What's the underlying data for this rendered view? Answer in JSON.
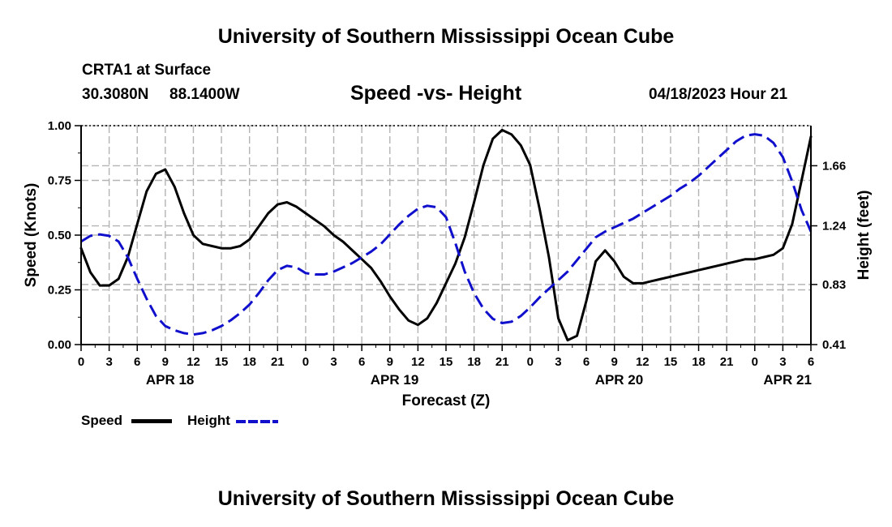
{
  "header": {
    "title_top": "University of Southern Mississippi Ocean Cube",
    "station": "CRTA1 at Surface",
    "lat": "30.3080N",
    "lon": "88.1400W",
    "chart_title": "Speed -vs- Height",
    "date": "04/18/2023 Hour 21"
  },
  "footer": {
    "title_bottom": "University of Southern Mississippi Ocean Cube"
  },
  "legend": {
    "speed_label": "Speed",
    "height_label": "Height"
  },
  "colors": {
    "speed": "#000000",
    "height": "#1010cc",
    "grid": "#b4b4b4"
  },
  "chart_data": {
    "type": "line",
    "title": "Speed -vs- Height",
    "xlabel": "Forecast (Z)",
    "ylabel": "Speed (Knots)",
    "y2label": "Height (feet)",
    "xlim": [
      0,
      78
    ],
    "ylim": [
      0,
      1.0
    ],
    "y2lim": [
      0.41,
      1.94
    ],
    "x_ticks": [
      0,
      3,
      6,
      9,
      12,
      15,
      18,
      21,
      24,
      27,
      30,
      33,
      36,
      39,
      42,
      45,
      48,
      51,
      54,
      57,
      60,
      63,
      66,
      69,
      72,
      75,
      78
    ],
    "x_tick_labels": [
      "0",
      "3",
      "6",
      "9",
      "12",
      "15",
      "18",
      "21",
      "0",
      "3",
      "6",
      "9",
      "12",
      "15",
      "18",
      "21",
      "0",
      "3",
      "6",
      "9",
      "12",
      "15",
      "18",
      "21",
      "0",
      "3",
      "6"
    ],
    "y_ticks": [
      0,
      0.25,
      0.5,
      0.75,
      1.0
    ],
    "y_tick_labels": [
      "0.00",
      "0.25",
      "0.50",
      "0.75",
      "1.00"
    ],
    "y2_ticks": [
      0.41,
      0.83,
      1.24,
      1.66
    ],
    "y2_tick_labels": [
      "0.41",
      "0.83",
      "1.24",
      "1.66"
    ],
    "date_labels": [
      {
        "x": 9.5,
        "label": "APR 18"
      },
      {
        "x": 33.5,
        "label": "APR 19"
      },
      {
        "x": 57.5,
        "label": "APR 20"
      },
      {
        "x": 75.5,
        "label": "APR 21"
      }
    ],
    "series": [
      {
        "name": "Speed",
        "axis": "left",
        "dash": "solid",
        "x": [
          0,
          1,
          2,
          3,
          4,
          5,
          6,
          7,
          8,
          9,
          10,
          11,
          12,
          13,
          14,
          15,
          16,
          17,
          18,
          19,
          20,
          21,
          22,
          23,
          24,
          25,
          26,
          27,
          28,
          29,
          30,
          31,
          32,
          33,
          34,
          35,
          36,
          37,
          38,
          39,
          40,
          41,
          42,
          43,
          44,
          45,
          46,
          47,
          48,
          49,
          50,
          51,
          52,
          53,
          54,
          55,
          56,
          57,
          58,
          59,
          60,
          61,
          62,
          63,
          64,
          65,
          66,
          67,
          68,
          69,
          70,
          71,
          72,
          73,
          74,
          75,
          76,
          77,
          78
        ],
        "values": [
          0.44,
          0.33,
          0.27,
          0.27,
          0.3,
          0.4,
          0.55,
          0.7,
          0.78,
          0.8,
          0.72,
          0.6,
          0.5,
          0.46,
          0.45,
          0.44,
          0.44,
          0.45,
          0.48,
          0.54,
          0.6,
          0.64,
          0.65,
          0.63,
          0.6,
          0.57,
          0.54,
          0.5,
          0.47,
          0.43,
          0.39,
          0.35,
          0.29,
          0.22,
          0.16,
          0.11,
          0.09,
          0.12,
          0.19,
          0.28,
          0.37,
          0.49,
          0.65,
          0.82,
          0.94,
          0.98,
          0.96,
          0.91,
          0.82,
          0.62,
          0.4,
          0.12,
          0.02,
          0.04,
          0.2,
          0.38,
          0.43,
          0.38,
          0.31,
          0.28,
          0.28,
          0.29,
          0.3,
          0.31,
          0.32,
          0.33,
          0.34,
          0.35,
          0.36,
          0.37,
          0.38,
          0.39,
          0.39,
          0.4,
          0.41,
          0.44,
          0.55,
          0.75,
          0.95
        ]
      },
      {
        "name": "Height",
        "axis": "right",
        "dash": "dashed",
        "x": [
          0,
          1,
          2,
          3,
          4,
          5,
          6,
          7,
          8,
          9,
          10,
          11,
          12,
          13,
          14,
          15,
          16,
          17,
          18,
          19,
          20,
          21,
          22,
          23,
          24,
          25,
          26,
          27,
          28,
          29,
          30,
          31,
          32,
          33,
          34,
          35,
          36,
          37,
          38,
          39,
          40,
          41,
          42,
          43,
          44,
          45,
          46,
          47,
          48,
          49,
          50,
          51,
          52,
          53,
          54,
          55,
          56,
          57,
          58,
          59,
          60,
          61,
          62,
          63,
          64,
          65,
          66,
          67,
          68,
          69,
          70,
          71,
          72,
          73,
          74,
          75,
          76,
          77,
          78
        ],
        "values": [
          1.13,
          1.17,
          1.18,
          1.17,
          1.13,
          1.02,
          0.87,
          0.73,
          0.61,
          0.54,
          0.51,
          0.49,
          0.48,
          0.49,
          0.51,
          0.54,
          0.58,
          0.63,
          0.69,
          0.77,
          0.86,
          0.93,
          0.96,
          0.95,
          0.91,
          0.9,
          0.9,
          0.92,
          0.95,
          0.98,
          1.02,
          1.06,
          1.11,
          1.18,
          1.25,
          1.31,
          1.36,
          1.38,
          1.37,
          1.3,
          1.12,
          0.92,
          0.77,
          0.66,
          0.59,
          0.56,
          0.57,
          0.61,
          0.67,
          0.74,
          0.8,
          0.86,
          0.92,
          1.0,
          1.08,
          1.16,
          1.2,
          1.23,
          1.26,
          1.29,
          1.33,
          1.37,
          1.41,
          1.45,
          1.5,
          1.54,
          1.59,
          1.65,
          1.71,
          1.77,
          1.83,
          1.87,
          1.88,
          1.87,
          1.82,
          1.72,
          1.55,
          1.35,
          1.2
        ]
      }
    ]
  }
}
